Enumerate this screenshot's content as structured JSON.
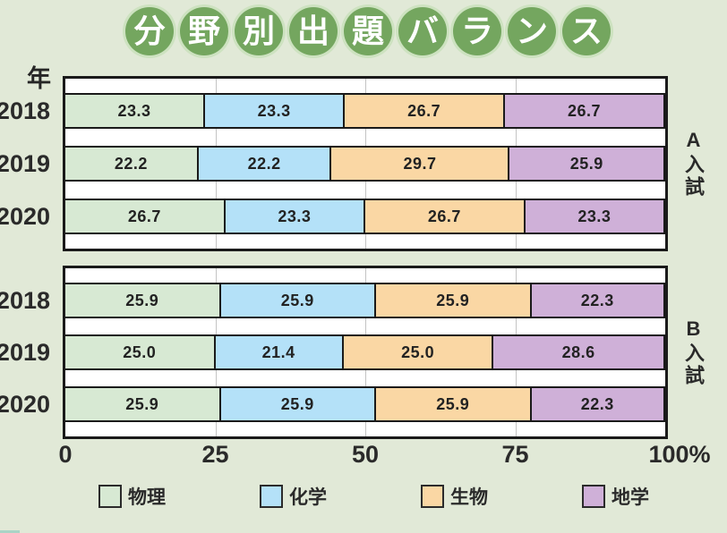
{
  "title": {
    "text": "分野別出題バランス",
    "chars": [
      "分",
      "野",
      "別",
      "出",
      "題",
      "バ",
      "ラ",
      "ン",
      "ス"
    ]
  },
  "axis": {
    "category_axis_label": "年",
    "tick_labels": [
      "0",
      "25",
      "50",
      "75",
      "100%"
    ],
    "tick_positions": [
      0,
      25,
      50,
      75,
      100
    ]
  },
  "legend": [
    {
      "label": "物理",
      "color": "#d7e9d3"
    },
    {
      "label": "化学",
      "color": "#b4e1f8"
    },
    {
      "label": "生物",
      "color": "#fad7a4"
    },
    {
      "label": "地学",
      "color": "#cfb0d8"
    }
  ],
  "colors": {
    "background": "#e1e9d7",
    "title_circle": "#74a65f",
    "title_circle_ring": "#cde2c0",
    "plot_background": "#ffffff",
    "plot_border": "#1a1a1a",
    "gridline": "#c4c4c4",
    "text": "#262626"
  },
  "chart_data": {
    "type": "bar",
    "stacked": true,
    "orientation": "horizontal",
    "title": "分野別出題バランス",
    "unit": "%",
    "xlim": [
      0,
      100
    ],
    "x_ticks": [
      0,
      25,
      50,
      75,
      100
    ],
    "grid": "vertical lines at 25/50/75",
    "legend_position": "bottom",
    "series_names": [
      "物理",
      "化学",
      "生物",
      "地学"
    ],
    "groups": [
      {
        "label": "A入試",
        "rows": [
          {
            "year": "2018",
            "values": [
              23.3,
              23.3,
              26.7,
              26.7
            ]
          },
          {
            "year": "2019",
            "values": [
              22.2,
              22.2,
              29.7,
              25.9
            ]
          },
          {
            "year": "2020",
            "values": [
              26.7,
              23.3,
              26.7,
              23.3
            ]
          }
        ]
      },
      {
        "label": "B入試",
        "rows": [
          {
            "year": "2018",
            "values": [
              25.9,
              25.9,
              25.9,
              22.3
            ]
          },
          {
            "year": "2019",
            "values": [
              25.0,
              21.4,
              25.0,
              28.6
            ]
          },
          {
            "year": "2020",
            "values": [
              25.9,
              25.9,
              25.9,
              22.3
            ]
          }
        ]
      }
    ]
  }
}
